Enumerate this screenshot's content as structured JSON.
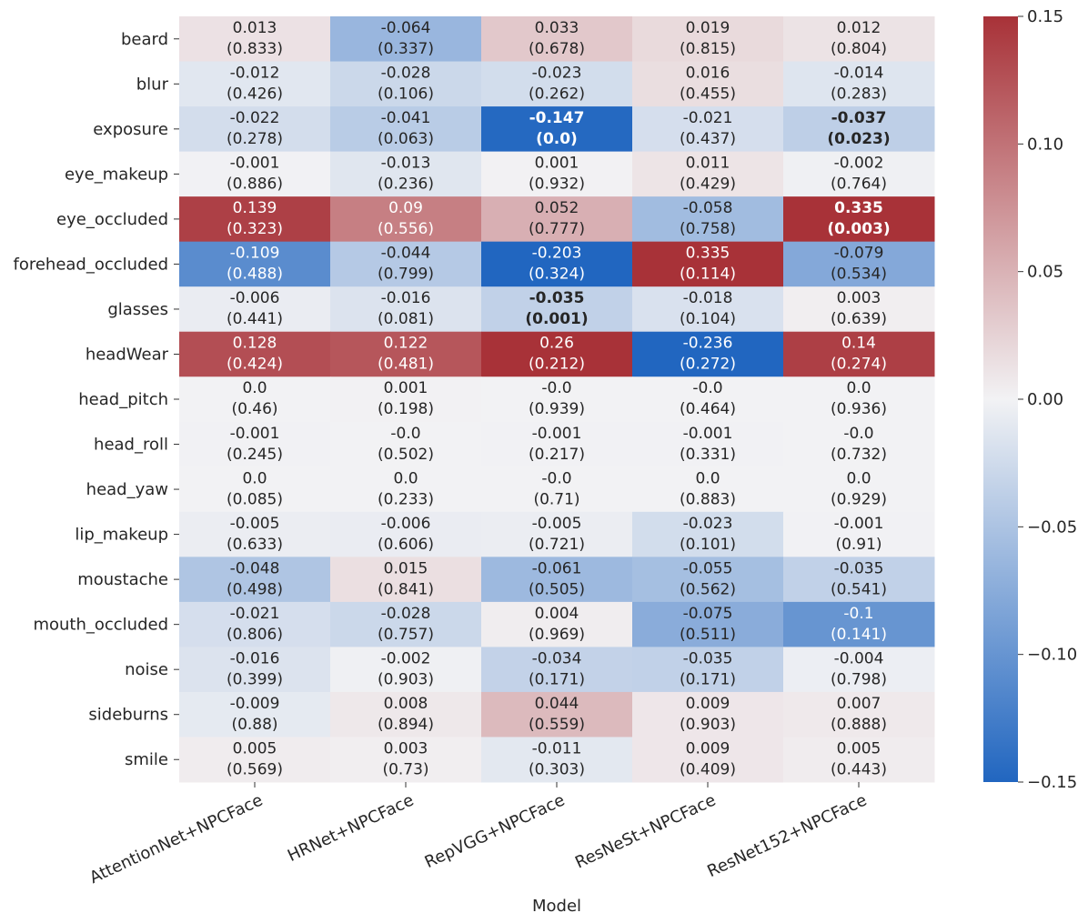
{
  "chart_data": {
    "type": "heatmap",
    "xlabel": "Model",
    "columns": [
      "AttentionNet+NPCFace",
      "HRNet+NPCFace",
      "RepVGG+NPCFace",
      "ResNeSt+NPCFace",
      "ResNet152+NPCFace"
    ],
    "rows": [
      "beard",
      "blur",
      "exposure",
      "eye_makeup",
      "eye_occluded",
      "forehead_occluded",
      "glasses",
      "headWear",
      "head_pitch",
      "head_roll",
      "head_yaw",
      "lip_makeup",
      "moustache",
      "mouth_occluded",
      "noise",
      "sideburns",
      "smile"
    ],
    "values": [
      [
        "0.013",
        "-0.064",
        "0.033",
        "0.019",
        "0.012"
      ],
      [
        "-0.012",
        "-0.028",
        "-0.023",
        "0.016",
        "-0.014"
      ],
      [
        "-0.022",
        "-0.041",
        "-0.147",
        "-0.021",
        "-0.037"
      ],
      [
        "-0.001",
        "-0.013",
        "0.001",
        "0.011",
        "-0.002"
      ],
      [
        "0.139",
        "0.09",
        "0.052",
        "-0.058",
        "0.335"
      ],
      [
        "-0.109",
        "-0.044",
        "-0.203",
        "0.335",
        "-0.079"
      ],
      [
        "-0.006",
        "-0.016",
        "-0.035",
        "-0.018",
        "0.003"
      ],
      [
        "0.128",
        "0.122",
        "0.26",
        "-0.236",
        "0.14"
      ],
      [
        "0.0",
        "0.001",
        "-0.0",
        "-0.0",
        "0.0"
      ],
      [
        "-0.001",
        "-0.0",
        "-0.001",
        "-0.001",
        "-0.0"
      ],
      [
        "0.0",
        "0.0",
        "-0.0",
        "0.0",
        "0.0"
      ],
      [
        "-0.005",
        "-0.006",
        "-0.005",
        "-0.023",
        "-0.001"
      ],
      [
        "-0.048",
        "0.015",
        "-0.061",
        "-0.055",
        "-0.035"
      ],
      [
        "-0.021",
        "-0.028",
        "0.004",
        "-0.075",
        "-0.1"
      ],
      [
        "-0.016",
        "-0.002",
        "-0.034",
        "-0.035",
        "-0.004"
      ],
      [
        "-0.009",
        "0.008",
        "0.044",
        "0.009",
        "0.007"
      ],
      [
        "0.005",
        "0.003",
        "-0.011",
        "0.009",
        "0.005"
      ]
    ],
    "pvalues": [
      [
        "(0.833)",
        "(0.337)",
        "(0.678)",
        "(0.815)",
        "(0.804)"
      ],
      [
        "(0.426)",
        "(0.106)",
        "(0.262)",
        "(0.455)",
        "(0.283)"
      ],
      [
        "(0.278)",
        "(0.063)",
        "(0.0)",
        "(0.437)",
        "(0.023)"
      ],
      [
        "(0.886)",
        "(0.236)",
        "(0.932)",
        "(0.429)",
        "(0.764)"
      ],
      [
        "(0.323)",
        "(0.556)",
        "(0.777)",
        "(0.758)",
        "(0.003)"
      ],
      [
        "(0.488)",
        "(0.799)",
        "(0.324)",
        "(0.114)",
        "(0.534)"
      ],
      [
        "(0.441)",
        "(0.081)",
        "(0.001)",
        "(0.104)",
        "(0.639)"
      ],
      [
        "(0.424)",
        "(0.481)",
        "(0.212)",
        "(0.272)",
        "(0.274)"
      ],
      [
        "(0.46)",
        "(0.198)",
        "(0.939)",
        "(0.464)",
        "(0.936)"
      ],
      [
        "(0.245)",
        "(0.502)",
        "(0.217)",
        "(0.331)",
        "(0.732)"
      ],
      [
        "(0.085)",
        "(0.233)",
        "(0.71)",
        "(0.883)",
        "(0.929)"
      ],
      [
        "(0.633)",
        "(0.606)",
        "(0.721)",
        "(0.101)",
        "(0.91)"
      ],
      [
        "(0.498)",
        "(0.841)",
        "(0.505)",
        "(0.562)",
        "(0.541)"
      ],
      [
        "(0.806)",
        "(0.757)",
        "(0.969)",
        "(0.511)",
        "(0.141)"
      ],
      [
        "(0.399)",
        "(0.903)",
        "(0.171)",
        "(0.171)",
        "(0.798)"
      ],
      [
        "(0.88)",
        "(0.894)",
        "(0.559)",
        "(0.903)",
        "(0.888)"
      ],
      [
        "(0.569)",
        "(0.73)",
        "(0.303)",
        "(0.409)",
        "(0.443)"
      ]
    ],
    "significant": [
      [
        false,
        false,
        false,
        false,
        false
      ],
      [
        false,
        false,
        false,
        false,
        false
      ],
      [
        false,
        false,
        true,
        false,
        true
      ],
      [
        false,
        false,
        false,
        false,
        false
      ],
      [
        false,
        false,
        false,
        false,
        true
      ],
      [
        false,
        false,
        false,
        false,
        false
      ],
      [
        false,
        false,
        true,
        false,
        false
      ],
      [
        false,
        false,
        false,
        false,
        false
      ],
      [
        false,
        false,
        false,
        false,
        false
      ],
      [
        false,
        false,
        false,
        false,
        false
      ],
      [
        false,
        false,
        false,
        false,
        false
      ],
      [
        false,
        false,
        false,
        false,
        false
      ],
      [
        false,
        false,
        false,
        false,
        false
      ],
      [
        false,
        false,
        false,
        false,
        false
      ],
      [
        false,
        false,
        false,
        false,
        false
      ],
      [
        false,
        false,
        false,
        false,
        false
      ],
      [
        false,
        false,
        false,
        false,
        false
      ]
    ],
    "color_range": [
      -0.15,
      0.15
    ],
    "colorbar_ticks": [
      "0.15",
      "0.10",
      "0.05",
      "0.00",
      "−0.05",
      "−0.10",
      "−0.15"
    ],
    "colorbar_tick_values": [
      0.15,
      0.1,
      0.05,
      0.0,
      -0.05,
      -0.1,
      -0.15
    ],
    "colormap": {
      "low": "#2166c0",
      "mid": "#f2f2f4",
      "high": "#a83238"
    },
    "grid": false,
    "legend": "colorbar-right"
  }
}
